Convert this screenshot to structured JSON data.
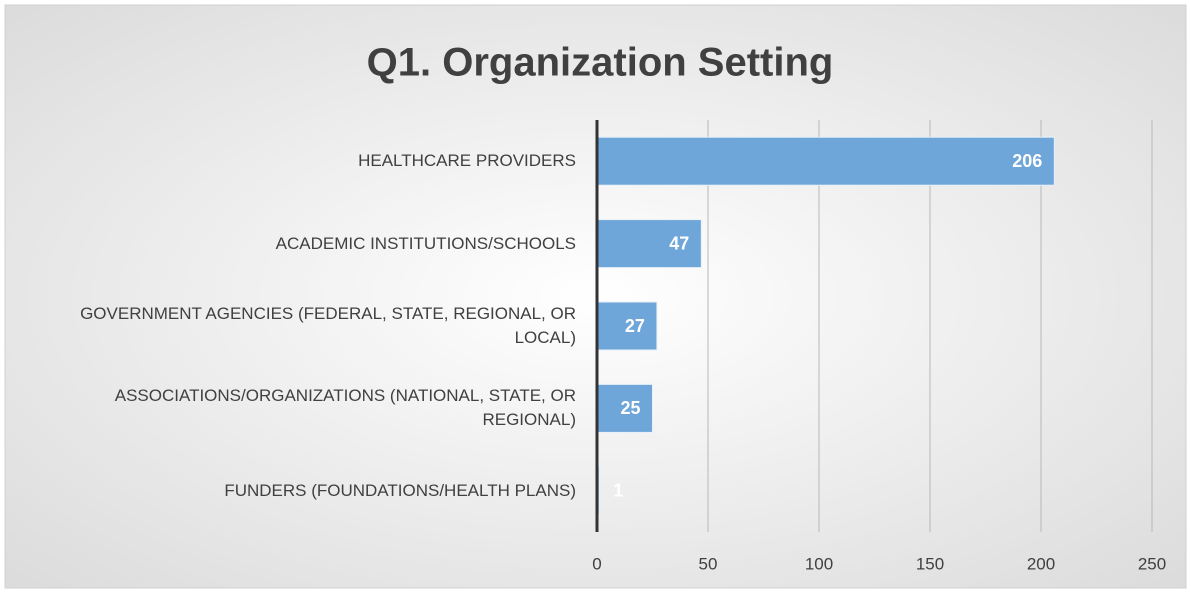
{
  "chart_data": {
    "type": "bar",
    "orientation": "horizontal",
    "title": "Q1. Organization Setting",
    "categories": [
      "HEALTHCARE PROVIDERS",
      "ACADEMIC INSTITUTIONS/SCHOOLS",
      "GOVERNMENT AGENCIES (FEDERAL, STATE, REGIONAL, OR LOCAL)",
      "ASSOCIATIONS/ORGANIZATIONS (NATIONAL, STATE, OR REGIONAL)",
      "FUNDERS (FOUNDATIONS/HEALTH PLANS)"
    ],
    "values": [
      206,
      47,
      27,
      25,
      1
    ],
    "color": "#6fa6d9",
    "xlim": [
      0,
      250
    ],
    "xticks": [
      0,
      50,
      100,
      150,
      200,
      250
    ],
    "grid": true
  }
}
